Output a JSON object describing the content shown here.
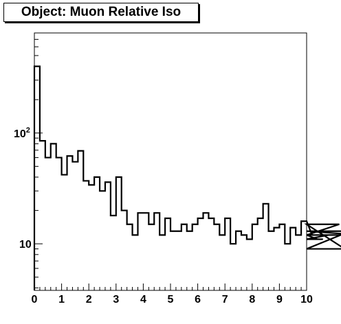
{
  "title": "Object: Muon Relative Iso",
  "chart_data": {
    "type": "histogram",
    "title": "Object: Muon Relative Iso",
    "xlim": [
      0,
      10
    ],
    "ylim_log": [
      3.8,
      800
    ],
    "yscale": "log",
    "x_ticks": [
      0,
      1,
      2,
      3,
      4,
      5,
      6,
      7,
      8,
      9,
      10
    ],
    "x_tick_labels": [
      "0",
      "1",
      "2",
      "3",
      "4",
      "5",
      "6",
      "7",
      "8",
      "9",
      "10"
    ],
    "y_tick_labels": [
      {
        "value": 10,
        "label": "10"
      },
      {
        "value": 100,
        "label": "10",
        "sup": "2"
      }
    ],
    "bin_width": 0.2,
    "series": [
      {
        "style": "solid-black",
        "color": "#000000",
        "values": [
          400,
          85,
          60,
          80,
          60,
          42,
          62,
          55,
          69,
          37,
          34,
          40,
          30,
          36,
          18,
          40,
          20,
          15,
          12,
          19,
          19,
          15,
          19,
          12,
          17,
          13,
          13,
          15,
          13,
          15,
          17,
          19,
          17,
          15,
          12,
          17,
          10,
          13,
          12,
          11,
          15,
          17,
          23,
          13,
          14,
          15,
          10,
          14,
          12,
          16,
          16,
          12,
          11,
          11,
          12,
          12,
          15,
          9,
          13,
          13,
          12
        ]
      }
    ]
  }
}
